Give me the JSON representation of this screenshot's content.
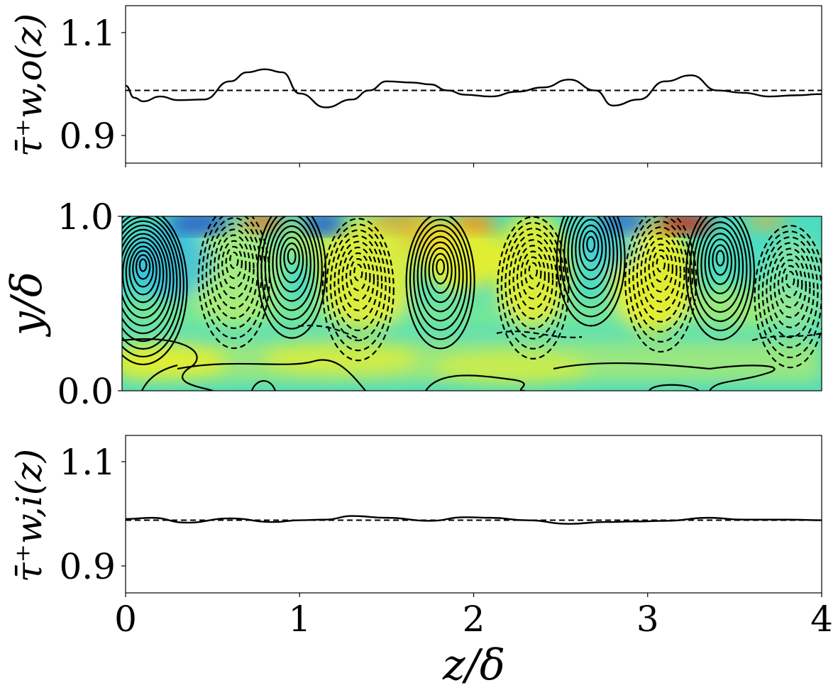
{
  "chart_data": [
    {
      "type": "line",
      "panel": "top",
      "ylabel": "τ̄⁺w,o(z)",
      "xlim": [
        0,
        4
      ],
      "ylim": [
        0.88,
        1.14
      ],
      "yticks": [
        0.9,
        1.1
      ],
      "ytick_labels": [
        "0.9",
        "1.1"
      ],
      "reference_line": {
        "y": 1.0,
        "style": "dashed"
      },
      "series": [
        {
          "x": [
            0.0,
            0.05,
            0.1,
            0.2,
            0.3,
            0.45,
            0.6,
            0.7,
            0.8,
            0.9,
            1.0,
            1.15,
            1.3,
            1.4,
            1.5,
            1.65,
            1.75,
            1.85,
            1.95,
            2.1,
            2.25,
            2.4,
            2.55,
            2.7,
            2.8,
            2.95,
            3.1,
            3.25,
            3.4,
            3.55,
            3.7,
            3.85,
            4.0
          ],
          "y": [
            1.008,
            0.988,
            0.982,
            0.99,
            0.984,
            0.985,
            1.015,
            1.03,
            1.035,
            1.03,
            0.995,
            0.972,
            0.985,
            1.0,
            1.015,
            1.013,
            1.01,
            1.0,
            0.993,
            0.99,
            0.998,
            1.005,
            1.018,
            1.0,
            0.975,
            0.985,
            1.015,
            1.025,
            1.0,
            0.996,
            0.99,
            0.992,
            0.994
          ]
        }
      ]
    },
    {
      "type": "heatmap",
      "panel": "middle",
      "ylabel": "y/δ",
      "xlim": [
        0,
        4
      ],
      "ylim": [
        0.0,
        1.0
      ],
      "yticks": [
        0.0,
        1.0
      ],
      "ytick_labels": [
        "0.0",
        "1.0"
      ],
      "contours": {
        "solid_centers": [
          {
            "z": 0.12,
            "y": 0.73
          },
          {
            "z": 0.97,
            "y": 0.78
          },
          {
            "z": 1.82,
            "y": 0.72
          },
          {
            "z": 2.68,
            "y": 0.85
          },
          {
            "z": 3.42,
            "y": 0.77
          }
        ],
        "dashed_centers": [
          {
            "z": 0.64,
            "y": 0.76
          },
          {
            "z": 1.35,
            "y": 0.69
          },
          {
            "z": 2.35,
            "y": 0.7
          },
          {
            "z": 3.08,
            "y": 0.74
          },
          {
            "z": 3.82,
            "y": 0.65
          }
        ]
      },
      "colormap": {
        "high": "#c8281c",
        "mid": "#f2ee22",
        "low": "#2e5ec8"
      }
    },
    {
      "type": "line",
      "panel": "bottom",
      "ylabel": "τ̄⁺w,i(z)",
      "xlabel": "z/δ",
      "xlim": [
        0,
        4
      ],
      "ylim": [
        0.88,
        1.14
      ],
      "xticks": [
        0,
        1,
        2,
        3,
        4
      ],
      "xtick_labels": [
        "0",
        "1",
        "2",
        "3",
        "4"
      ],
      "yticks": [
        0.9,
        1.1
      ],
      "ytick_labels": [
        "0.9",
        "1.1"
      ],
      "reference_line": {
        "y": 1.0,
        "style": "dashed"
      },
      "series": [
        {
          "x": [
            0.0,
            0.15,
            0.35,
            0.6,
            0.85,
            1.0,
            1.15,
            1.3,
            1.5,
            1.75,
            1.95,
            2.1,
            2.3,
            2.55,
            2.75,
            2.95,
            3.1,
            3.35,
            3.55,
            3.8,
            4.0
          ],
          "y": [
            1.002,
            1.004,
            0.996,
            1.003,
            0.997,
            1.0,
            1.001,
            1.007,
            1.004,
            0.999,
            1.005,
            1.004,
            1.0,
            0.994,
            0.997,
            0.998,
            0.999,
            1.004,
            1.001,
            1.001,
            1.0
          ]
        }
      ]
    }
  ],
  "labels": {
    "top_ylabel": "τ̄⁺w,o(z)",
    "mid_ylabel": "y/δ",
    "bot_ylabel": "τ̄⁺w,i(z)",
    "xlabel": "z/δ"
  }
}
